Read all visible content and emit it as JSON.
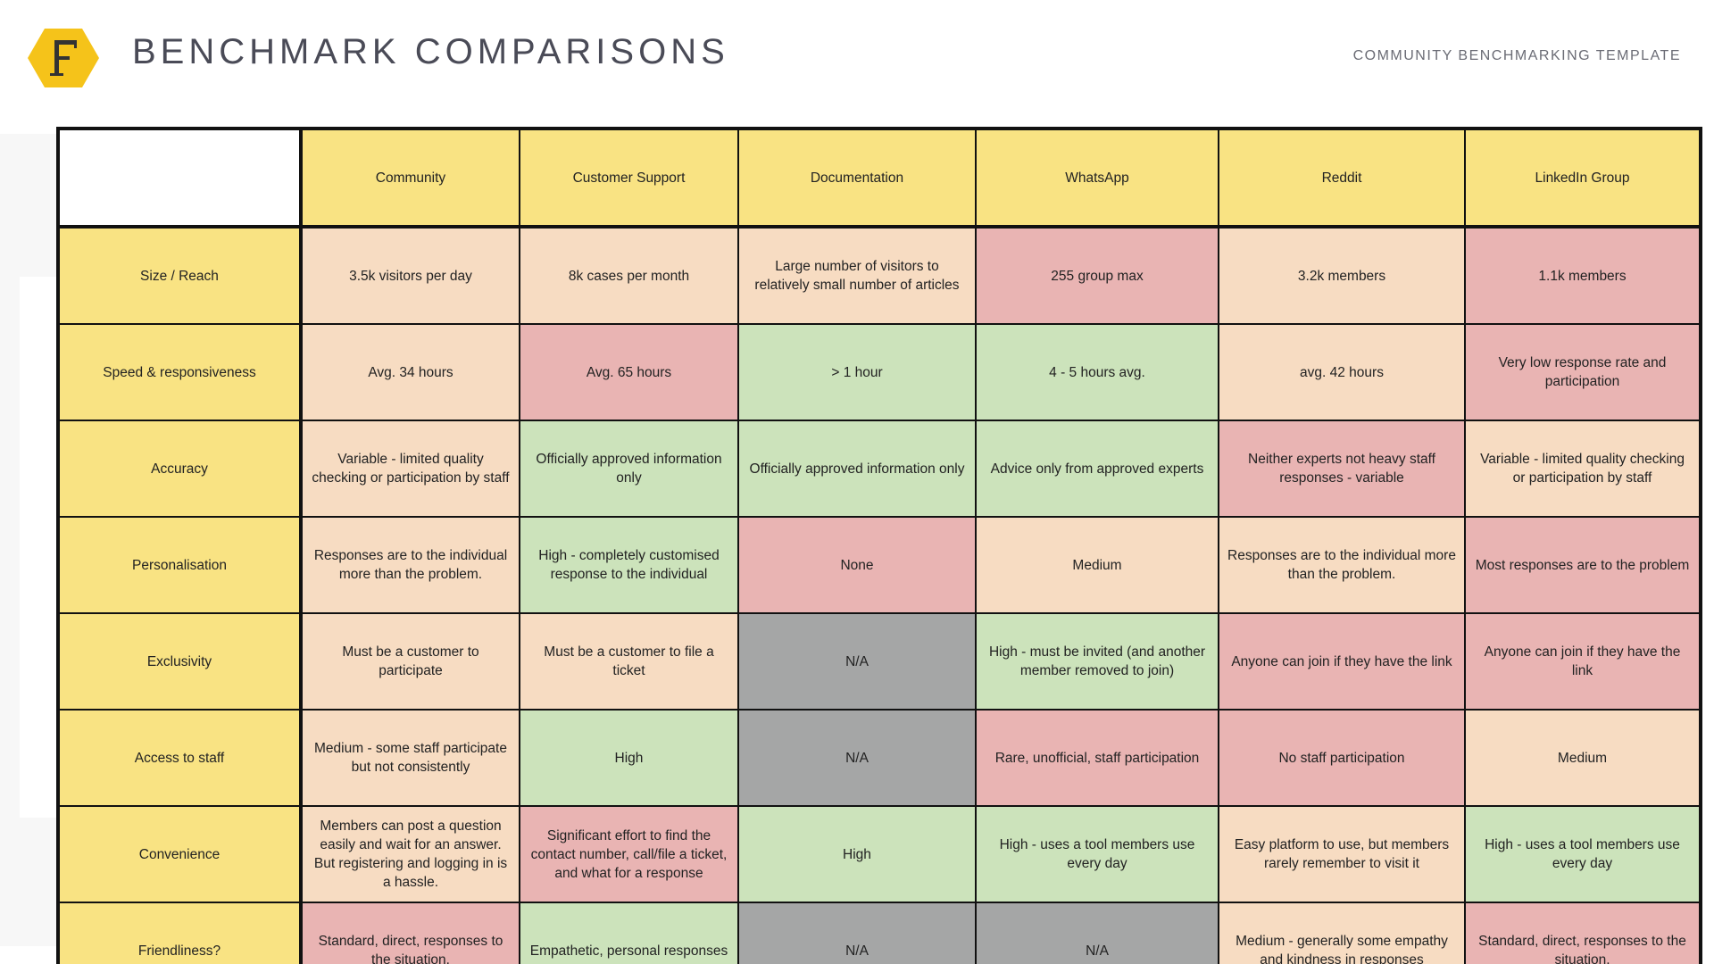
{
  "header": {
    "logo_letter": "F",
    "title": "BENCHMARK COMPARISONS",
    "subtitle": "COMMUNITY BENCHMARKING TEMPLATE"
  },
  "colors": {
    "header_yellow": "#f9e383",
    "red": "#e9b4b3",
    "green": "#cce3bb",
    "peach": "#f7dcc2",
    "gray": "#a5a6a6",
    "logo_yellow": "#f5c31a",
    "logo_letter": "#333333",
    "title_text": "#4a4b57"
  },
  "table": {
    "columns": [
      "Community",
      "Customer Support",
      "Documentation",
      "WhatsApp",
      "Reddit",
      "LinkedIn Group"
    ],
    "rows": [
      {
        "label": "Size / Reach",
        "cells": [
          {
            "text": "3.5k visitors per day",
            "rating": "peach"
          },
          {
            "text": "8k cases per month",
            "rating": "peach"
          },
          {
            "text": "Large number of visitors to relatively small number of articles",
            "rating": "peach"
          },
          {
            "text": "255 group max",
            "rating": "red"
          },
          {
            "text": "3.2k members",
            "rating": "peach"
          },
          {
            "text": "1.1k members",
            "rating": "red"
          }
        ]
      },
      {
        "label": "Speed & responsiveness",
        "cells": [
          {
            "text": "Avg. 34 hours",
            "rating": "peach"
          },
          {
            "text": "Avg. 65 hours",
            "rating": "red"
          },
          {
            "text": "> 1 hour",
            "rating": "green"
          },
          {
            "text": "4 - 5 hours avg.",
            "rating": "green"
          },
          {
            "text": "avg. 42 hours",
            "rating": "peach"
          },
          {
            "text": "Very low response rate and participation",
            "rating": "red"
          }
        ]
      },
      {
        "label": "Accuracy",
        "cells": [
          {
            "text": "Variable - limited quality checking or participation by staff",
            "rating": "peach"
          },
          {
            "text": "Officially approved information only",
            "rating": "green"
          },
          {
            "text": "Officially approved information only",
            "rating": "green"
          },
          {
            "text": "Advice only from approved experts",
            "rating": "green"
          },
          {
            "text": "Neither experts not heavy staff responses - variable",
            "rating": "red"
          },
          {
            "text": "Variable - limited quality checking or participation by staff",
            "rating": "peach"
          }
        ]
      },
      {
        "label": "Personalisation",
        "cells": [
          {
            "text": "Responses are to the individual more than the problem.",
            "rating": "peach"
          },
          {
            "text": "High - completely customised response to the individual",
            "rating": "green"
          },
          {
            "text": "None",
            "rating": "red"
          },
          {
            "text": "Medium",
            "rating": "peach"
          },
          {
            "text": "Responses are to the individual more than the problem.",
            "rating": "peach"
          },
          {
            "text": "Most responses are to the problem",
            "rating": "red"
          }
        ]
      },
      {
        "label": "Exclusivity",
        "cells": [
          {
            "text": "Must be a customer to participate",
            "rating": "peach"
          },
          {
            "text": "Must be a customer to file a ticket",
            "rating": "peach"
          },
          {
            "text": "N/A",
            "rating": "gray"
          },
          {
            "text": "High - must be invited (and another member removed to join)",
            "rating": "green"
          },
          {
            "text": "Anyone can join if they have the link",
            "rating": "red"
          },
          {
            "text": "Anyone can join if they have the link",
            "rating": "red"
          }
        ]
      },
      {
        "label": "Access to staff",
        "cells": [
          {
            "text": "Medium - some staff participate but not consistently",
            "rating": "peach"
          },
          {
            "text": "High",
            "rating": "green"
          },
          {
            "text": "N/A",
            "rating": "gray"
          },
          {
            "text": "Rare, unofficial, staff participation",
            "rating": "red"
          },
          {
            "text": "No staff participation",
            "rating": "red"
          },
          {
            "text": "Medium",
            "rating": "peach"
          }
        ]
      },
      {
        "label": "Convenience",
        "cells": [
          {
            "text": "Members can post a question easily and wait for an answer. But registering and logging in is a hassle.",
            "rating": "peach"
          },
          {
            "text": "Significant effort to find the contact number, call/file a ticket, and what for a response",
            "rating": "red"
          },
          {
            "text": "High",
            "rating": "green"
          },
          {
            "text": "High - uses a tool members use every day",
            "rating": "green"
          },
          {
            "text": "Easy platform to use, but members rarely remember to visit it",
            "rating": "peach"
          },
          {
            "text": "High - uses a tool members use every day",
            "rating": "green"
          }
        ]
      },
      {
        "label": "Friendliness?",
        "cells": [
          {
            "text": "Standard, direct, responses to the situation.",
            "rating": "red"
          },
          {
            "text": "Empathetic, personal responses",
            "rating": "green"
          },
          {
            "text": "N/A",
            "rating": "gray"
          },
          {
            "text": "N/A",
            "rating": "gray"
          },
          {
            "text": "Medium - generally some empathy and kindness in responses",
            "rating": "peach"
          },
          {
            "text": "Standard, direct, responses to the situation.",
            "rating": "red"
          }
        ]
      }
    ]
  }
}
